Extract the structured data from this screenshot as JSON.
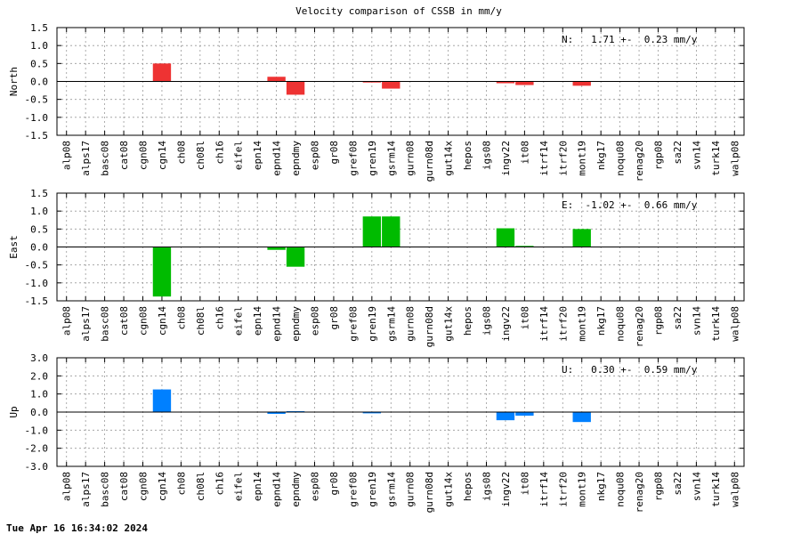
{
  "title": "Velocity comparison of CSSB in mm/y",
  "timestamp": "Tue Apr 16 16:34:02 2024",
  "chart_data": [
    {
      "type": "bar",
      "panel": "north",
      "ylabel": "North",
      "annotation": "N:   1.71 +-  0.23 mm/y",
      "color": "#ee3333",
      "ylim": [
        -1.5,
        1.5
      ],
      "yticks": [
        "1.5",
        "1.0",
        "0.5",
        "0.0",
        "-0.5",
        "-1.0",
        "-1.5"
      ],
      "grid": true,
      "categories": [
        "alp08",
        "alps17",
        "basc08",
        "cat08",
        "cgn08",
        "cgn14",
        "ch08",
        "ch08l",
        "ch16",
        "eifel",
        "epn14",
        "epnd14",
        "epndmy",
        "esp08",
        "gr08",
        "gref08",
        "gren19",
        "gsrm14",
        "gurn08",
        "gurn08d",
        "gut14x",
        "hepos",
        "igs08",
        "ingv22",
        "it08",
        "itrf14",
        "itrf20",
        "mont19",
        "nkg17",
        "noqu08",
        "renag20",
        "rgp08",
        "sa22",
        "svn14",
        "turk14",
        "walp08"
      ],
      "values": [
        0,
        0,
        0,
        0,
        0,
        0.5,
        0,
        0,
        0,
        0,
        0,
        0.13,
        -0.37,
        0,
        0,
        0,
        -0.03,
        -0.2,
        0,
        0,
        0,
        0,
        0,
        -0.05,
        -0.1,
        0,
        0,
        -0.12,
        0,
        0,
        0,
        0,
        0,
        0,
        0,
        0
      ]
    },
    {
      "type": "bar",
      "panel": "east",
      "ylabel": "East",
      "annotation": "E:  -1.02 +-  0.66 mm/y",
      "color": "#00bb00",
      "ylim": [
        -1.5,
        1.5
      ],
      "yticks": [
        "1.5",
        "1.0",
        "0.5",
        "0.0",
        "-0.5",
        "-1.0",
        "-1.5"
      ],
      "grid": true,
      "categories": [
        "alp08",
        "alps17",
        "basc08",
        "cat08",
        "cgn08",
        "cgn14",
        "ch08",
        "ch08l",
        "ch16",
        "eifel",
        "epn14",
        "epnd14",
        "epndmy",
        "esp08",
        "gr08",
        "gref08",
        "gren19",
        "gsrm14",
        "gurn08",
        "gurn08d",
        "gut14x",
        "hepos",
        "igs08",
        "ingv22",
        "it08",
        "itrf14",
        "itrf20",
        "mont19",
        "nkg17",
        "noqu08",
        "renag20",
        "rgp08",
        "sa22",
        "svn14",
        "turk14",
        "walp08"
      ],
      "values": [
        0,
        0,
        0,
        0,
        0,
        -1.38,
        0,
        0,
        0,
        0,
        0,
        -0.08,
        -0.55,
        0,
        0,
        0,
        0.85,
        0.85,
        0,
        0,
        0,
        0,
        0,
        0.52,
        0.03,
        0,
        0,
        0.5,
        0,
        0,
        0,
        0,
        0,
        0,
        0,
        0
      ]
    },
    {
      "type": "bar",
      "panel": "up",
      "ylabel": "Up",
      "annotation": "U:   0.30 +-  0.59 mm/y",
      "color": "#0080ff",
      "ylim": [
        -3.0,
        3.0
      ],
      "yticks": [
        "3.0",
        "2.0",
        "1.0",
        "0.0",
        "-1.0",
        "-2.0",
        "-3.0"
      ],
      "grid": true,
      "categories": [
        "alp08",
        "alps17",
        "basc08",
        "cat08",
        "cgn08",
        "cgn14",
        "ch08",
        "ch08l",
        "ch16",
        "eifel",
        "epn14",
        "epnd14",
        "epndmy",
        "esp08",
        "gr08",
        "gref08",
        "gren19",
        "gsrm14",
        "gurn08",
        "gurn08d",
        "gut14x",
        "hepos",
        "igs08",
        "ingv22",
        "it08",
        "itrf14",
        "itrf20",
        "mont19",
        "nkg17",
        "noqu08",
        "renag20",
        "rgp08",
        "sa22",
        "svn14",
        "turk14",
        "walp08"
      ],
      "values": [
        0,
        0,
        0,
        0,
        0,
        1.25,
        0,
        0,
        0,
        0,
        0,
        -0.1,
        0.05,
        0,
        0,
        0,
        -0.07,
        0,
        0,
        0,
        0,
        0,
        0,
        -0.45,
        -0.2,
        0,
        0,
        -0.55,
        0,
        0,
        0,
        0,
        0,
        0,
        0,
        0
      ]
    }
  ]
}
